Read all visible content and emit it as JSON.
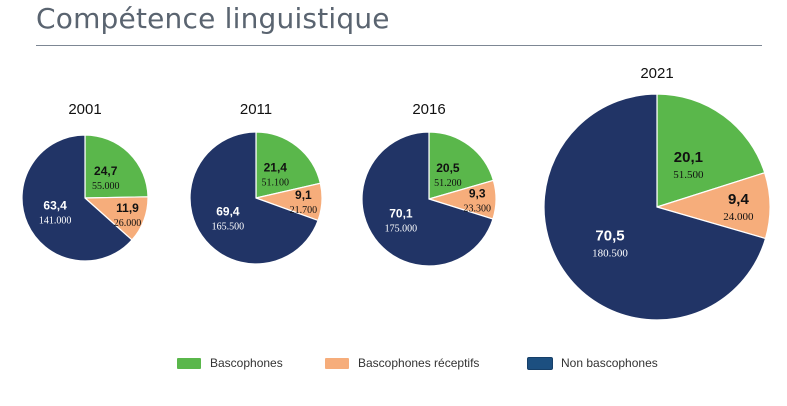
{
  "title": "Compétence linguistique",
  "colors": {
    "green": "#5ab74b",
    "orange": "#f6ad7b",
    "navy": "#213466"
  },
  "legend": {
    "items": [
      {
        "label": "Bascophones",
        "color": "#5ab74b"
      },
      {
        "label": "Bascophones réceptifs",
        "color": "#f6ad7b"
      },
      {
        "label": "Non bascophones",
        "color": "#1c4f80"
      }
    ]
  },
  "chart_data": [
    {
      "type": "pie",
      "title": "2001",
      "categories": [
        "Bascophones",
        "Bascophones réceptifs",
        "Non bascophones"
      ],
      "values": [
        24.7,
        11.9,
        63.4
      ],
      "pct_labels": [
        "24,7",
        "11,9",
        "63,4"
      ],
      "count_labels": [
        "55.000",
        "26.000",
        "141.000"
      ]
    },
    {
      "type": "pie",
      "title": "2011",
      "categories": [
        "Bascophones",
        "Bascophones réceptifs",
        "Non bascophones"
      ],
      "values": [
        21.4,
        9.1,
        69.4
      ],
      "pct_labels": [
        "21,4",
        "9,1",
        "69,4"
      ],
      "count_labels": [
        "51.100",
        "21.700",
        "165.500"
      ]
    },
    {
      "type": "pie",
      "title": "2016",
      "categories": [
        "Bascophones",
        "Bascophones réceptifs",
        "Non bascophones"
      ],
      "values": [
        20.5,
        9.3,
        70.1
      ],
      "pct_labels": [
        "20,5",
        "9,3",
        "70,1"
      ],
      "count_labels": [
        "51.200",
        "23.300",
        "175.000"
      ]
    },
    {
      "type": "pie",
      "title": "2021",
      "categories": [
        "Bascophones",
        "Bascophones réceptifs",
        "Non bascophones"
      ],
      "values": [
        20.1,
        9.4,
        70.5
      ],
      "pct_labels": [
        "20,1",
        "9,4",
        "70,5"
      ],
      "count_labels": [
        "51.500",
        "24.000",
        "180.500"
      ]
    }
  ]
}
